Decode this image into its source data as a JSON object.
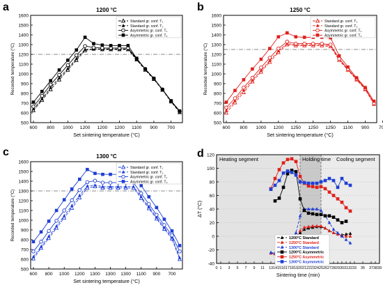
{
  "chart_data": [
    {
      "panel": "a",
      "type": "line",
      "title": "1200 °C",
      "xlabel": "Set sintering temperature (°C)",
      "ylabel": "Recorded temperature (°C)",
      "categories": [
        "600",
        "700",
        "800",
        "900",
        "1000",
        "1100",
        "1200",
        "1200",
        "1200",
        "1200",
        "1200",
        "1200",
        "1100",
        "1000",
        "900",
        "800",
        "700",
        "600"
      ],
      "x_tick_labels": [
        "600",
        "800",
        "1000",
        "1200",
        "1200",
        "1200",
        "1100",
        "900",
        "700"
      ],
      "ylim": [
        500,
        1600
      ],
      "y_ticks": [
        500,
        600,
        700,
        800,
        900,
        1000,
        1100,
        1200,
        1300,
        1400,
        1500,
        1600
      ],
      "reference_line": 1200,
      "legend_position": "top-right",
      "series": [
        {
          "name": "Standard gr. conf. T₁",
          "color": "#000000",
          "marker": "triangle-open",
          "dash": "4,2",
          "values": [
            625,
            730,
            840,
            940,
            1040,
            1140,
            1240,
            1255,
            1250,
            1250,
            1250,
            1250,
            1145,
            1040,
            945,
            835,
            715,
            605
          ]
        },
        {
          "name": "Standard gr. conf. T₂",
          "color": "#000000",
          "marker": "triangle",
          "dash": "4,2",
          "values": [
            640,
            745,
            860,
            960,
            1055,
            1155,
            1250,
            1255,
            1255,
            1255,
            1255,
            1255,
            1150,
            1045,
            950,
            840,
            720,
            610
          ]
        },
        {
          "name": "Asymmetric gr. conf. T₁",
          "color": "#000000",
          "marker": "circle-open",
          "dash": "",
          "values": [
            665,
            775,
            890,
            990,
            1090,
            1190,
            1285,
            1270,
            1265,
            1265,
            1265,
            1265,
            1155,
            1050,
            950,
            840,
            720,
            615
          ]
        },
        {
          "name": "Asymmetric gr. conf. T₂",
          "color": "#000000",
          "marker": "square",
          "dash": "",
          "values": [
            710,
            820,
            930,
            1040,
            1140,
            1245,
            1375,
            1310,
            1295,
            1290,
            1290,
            1290,
            1160,
            1050,
            955,
            840,
            725,
            620
          ]
        }
      ]
    },
    {
      "panel": "b",
      "type": "line",
      "title": "1250 °C",
      "xlabel": "Set sintering temperature (°C)",
      "ylabel": "Recorded temperature (°C)",
      "categories": [
        "600",
        "700",
        "800",
        "900",
        "1000",
        "1100",
        "1200",
        "1250",
        "1250",
        "1250",
        "1250",
        "1250",
        "1250",
        "1100",
        "1000",
        "900",
        "800",
        "700"
      ],
      "x_tick_labels": [
        "600",
        "800",
        "1000",
        "1200",
        "1250",
        "1250",
        "1250",
        "1100",
        "900",
        "700"
      ],
      "ylim": [
        500,
        1600
      ],
      "y_ticks": [
        500,
        600,
        700,
        800,
        900,
        1000,
        1100,
        1200,
        1300,
        1400,
        1500,
        1600
      ],
      "reference_line": 1250,
      "legend_position": "top-right",
      "series": [
        {
          "name": "Standard gr. conf. T₁",
          "color": "#e0201b",
          "marker": "triangle-open",
          "dash": "4,2",
          "values": [
            600,
            705,
            810,
            920,
            1020,
            1120,
            1220,
            1300,
            1290,
            1290,
            1290,
            1290,
            1280,
            1140,
            1040,
            940,
            840,
            690
          ]
        },
        {
          "name": "Standard gr. conf. T₂",
          "color": "#e0201b",
          "marker": "triangle",
          "dash": "4,2",
          "values": [
            625,
            725,
            835,
            935,
            1035,
            1135,
            1235,
            1310,
            1300,
            1300,
            1300,
            1300,
            1290,
            1150,
            1045,
            945,
            845,
            695
          ]
        },
        {
          "name": "Asymmetric gr. conf. T₁",
          "color": "#e0201b",
          "marker": "circle-open",
          "dash": "",
          "values": [
            655,
            750,
            860,
            960,
            1065,
            1165,
            1260,
            1330,
            1310,
            1310,
            1310,
            1310,
            1300,
            1155,
            1050,
            950,
            850,
            700
          ]
        },
        {
          "name": "Asymmetric gr. conf. T₂",
          "color": "#e0201b",
          "marker": "square",
          "dash": "",
          "values": [
            710,
            830,
            940,
            1050,
            1150,
            1260,
            1380,
            1420,
            1380,
            1375,
            1375,
            1375,
            1370,
            1185,
            1070,
            960,
            860,
            720
          ]
        }
      ]
    },
    {
      "panel": "c",
      "type": "line",
      "title": "1300 °C",
      "xlabel": "Set sintering temperature (°C)",
      "ylabel": "Recorded temperature (°C)",
      "categories": [
        "600",
        "700",
        "800",
        "900",
        "1000",
        "1100",
        "1200",
        "1250",
        "1300",
        "1300",
        "1300",
        "1300",
        "1300",
        "1300",
        "1200",
        "1100",
        "1000",
        "900",
        "800",
        "700"
      ],
      "x_tick_labels": [
        "600",
        "800",
        "1000",
        "1200",
        "1300",
        "1300",
        "1300",
        "1100",
        "900",
        "700"
      ],
      "ylim": [
        500,
        1600
      ],
      "y_ticks": [
        500,
        600,
        700,
        800,
        900,
        1000,
        1100,
        1200,
        1300,
        1400,
        1500,
        1600
      ],
      "reference_line": 1300,
      "legend_position": "top-right",
      "series": [
        {
          "name": "Standard gr. conf. T₁",
          "color": "#1f3fd6",
          "marker": "triangle-open",
          "dash": "4,2",
          "values": [
            605,
            715,
            815,
            920,
            1025,
            1125,
            1230,
            1330,
            1345,
            1330,
            1330,
            1330,
            1330,
            1330,
            1225,
            1120,
            1015,
            910,
            810,
            600
          ]
        },
        {
          "name": "Standard gr. conf. T₂",
          "color": "#1f3fd6",
          "marker": "triangle",
          "dash": "4,2",
          "values": [
            625,
            730,
            835,
            940,
            1045,
            1150,
            1255,
            1350,
            1360,
            1345,
            1345,
            1345,
            1345,
            1345,
            1240,
            1135,
            1030,
            925,
            825,
            615
          ]
        },
        {
          "name": "Asymmetric gr. conf. T₁",
          "color": "#1f3fd6",
          "marker": "circle-open",
          "dash": "",
          "values": [
            680,
            780,
            890,
            995,
            1100,
            1205,
            1310,
            1390,
            1405,
            1385,
            1385,
            1385,
            1385,
            1385,
            1275,
            1165,
            1055,
            950,
            845,
            680
          ]
        },
        {
          "name": "Asymmetric gr. conf. T₂",
          "color": "#1f3fd6",
          "marker": "square",
          "dash": "",
          "values": [
            780,
            880,
            990,
            1100,
            1210,
            1320,
            1420,
            1520,
            1480,
            1470,
            1470,
            1470,
            1470,
            1470,
            1355,
            1240,
            1130,
            1010,
            890,
            740
          ]
        }
      ]
    },
    {
      "panel": "d",
      "type": "line",
      "title": "",
      "xlabel": "Sintering time (min)",
      "ylabel": "ΔT (°C)",
      "xlim": [
        0,
        39
      ],
      "x_ticks": [
        0,
        1,
        3,
        5,
        7,
        9,
        11,
        13,
        14,
        15,
        16,
        17,
        18,
        19,
        20,
        21,
        22,
        23,
        24,
        25,
        26,
        27,
        28,
        29,
        30,
        31,
        32,
        33,
        35,
        37,
        38,
        39
      ],
      "x_tick_labels": [
        "0",
        "1",
        "3",
        "5",
        "7",
        "9",
        "11",
        "13",
        "14",
        "15",
        "16",
        "17",
        "18",
        "19",
        "20",
        "21",
        "22",
        "23",
        "24",
        "25",
        "26",
        "27",
        "28",
        "29",
        "30",
        "31",
        "32",
        "33",
        "35",
        "37",
        "38",
        "39"
      ],
      "ylim": [
        -40,
        120
      ],
      "y_ticks": [
        -40,
        -20,
        0,
        20,
        40,
        60,
        80,
        100,
        120
      ],
      "segments": [
        {
          "label": "Heating segment",
          "from": 0,
          "to": 20
        },
        {
          "label": "Holding time",
          "from": 20,
          "to": 25
        },
        {
          "label": "Cooling segment",
          "from": 25,
          "to": 39
        }
      ],
      "legend_position": "bottom-left",
      "series": [
        {
          "name": "1200°C Standard",
          "color": "#000000",
          "marker": "triangle",
          "dash": "4,2",
          "x": [
            13,
            14,
            15,
            16,
            17,
            18,
            19,
            20,
            21,
            22,
            23,
            24,
            25,
            26,
            27,
            28,
            29,
            30,
            31,
            32
          ],
          "values": [
            -24,
            -25,
            -25,
            -24,
            -20,
            -15,
            -5,
            5,
            10,
            12,
            13,
            14,
            14,
            12,
            8,
            5,
            3,
            2,
            3,
            4
          ]
        },
        {
          "name": "1250°C Standard",
          "color": "#e0201b",
          "marker": "triangle",
          "dash": "4,2",
          "x": [
            13,
            14,
            15,
            16,
            17,
            18,
            19,
            20,
            21,
            22,
            23,
            24,
            25,
            26,
            27,
            28,
            29,
            30,
            31,
            32
          ],
          "values": [
            -25,
            -26,
            -25,
            -22,
            -18,
            -12,
            -2,
            8,
            13,
            14,
            15,
            15,
            15,
            12,
            8,
            5,
            3,
            1,
            0,
            0
          ]
        },
        {
          "name": "1300°C Standard",
          "color": "#1f3fd6",
          "marker": "triangle",
          "dash": "4,2",
          "x": [
            13,
            14,
            15,
            16,
            17,
            18,
            19,
            20,
            21,
            22,
            23,
            24,
            25,
            26,
            27,
            28,
            29,
            30,
            31,
            32
          ],
          "values": [
            -24,
            -25,
            -26,
            -24,
            -20,
            -10,
            5,
            30,
            40,
            40,
            40,
            40,
            38,
            30,
            20,
            10,
            5,
            0,
            -5,
            -10
          ]
        },
        {
          "name": "1200°C Asymmetric",
          "color": "#000000",
          "marker": "square",
          "dash": "",
          "x": [
            14,
            15,
            16,
            17,
            18,
            19,
            20,
            21,
            22,
            23,
            24,
            25,
            26,
            27,
            28,
            29,
            30,
            31
          ],
          "values": [
            52,
            56,
            72,
            92,
            97,
            95,
            55,
            38,
            34,
            33,
            32,
            32,
            30,
            30,
            28,
            24,
            20,
            22
          ]
        },
        {
          "name": "1250°C Asymmetric",
          "color": "#e0201b",
          "marker": "square",
          "dash": "",
          "x": [
            13,
            14,
            15,
            16,
            17,
            18,
            19,
            20,
            21,
            22,
            23,
            24,
            25,
            26,
            27,
            28,
            29,
            30,
            31,
            32
          ],
          "values": [
            70,
            85,
            98,
            108,
            113,
            114,
            110,
            88,
            78,
            74,
            73,
            72,
            73,
            70,
            65,
            60,
            55,
            50,
            42,
            37
          ]
        },
        {
          "name": "1300°C Asymmetric",
          "color": "#1f3fd6",
          "marker": "square",
          "dash": "",
          "x": [
            13,
            14,
            15,
            16,
            17,
            18,
            19,
            20,
            21,
            22,
            23,
            24,
            25,
            26,
            27,
            28,
            29,
            30,
            31,
            32
          ],
          "values": [
            69,
            75,
            82,
            93,
            96,
            94,
            90,
            80,
            79,
            78,
            78,
            78,
            80,
            82,
            85,
            82,
            72,
            85,
            78,
            75
          ]
        }
      ]
    }
  ]
}
